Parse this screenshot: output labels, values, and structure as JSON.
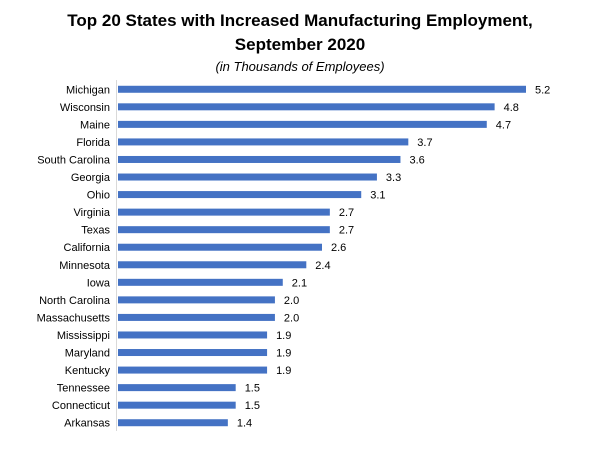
{
  "chart_data": {
    "type": "bar",
    "orientation": "horizontal",
    "title": "Top 20 States with Increased Manufacturing Employment, September 2020",
    "title_lines": [
      "Top 20 States with Increased Manufacturing Employment,",
      "September 2020"
    ],
    "subtitle": "(in Thousands of Employees)",
    "xlabel": "",
    "ylabel": "",
    "categories": [
      "Michigan",
      "Wisconsin",
      "Maine",
      "Florida",
      "South Carolina",
      "Georgia",
      "Ohio",
      "Virginia",
      "Texas",
      "California",
      "Minnesota",
      "Iowa",
      "North Carolina",
      "Massachusetts",
      "Mississippi",
      "Maryland",
      "Kentucky",
      "Tennessee",
      "Connecticut",
      "Arkansas"
    ],
    "values": [
      5.2,
      4.8,
      4.7,
      3.7,
      3.6,
      3.3,
      3.1,
      2.7,
      2.7,
      2.6,
      2.4,
      2.1,
      2.0,
      2.0,
      1.9,
      1.9,
      1.9,
      1.5,
      1.5,
      1.4
    ],
    "value_labels": [
      "5.2",
      "4.8",
      "4.7",
      "3.7",
      "3.6",
      "3.3",
      "3.1",
      "2.7",
      "2.7",
      "2.6",
      "2.4",
      "2.1",
      "2.0",
      "2.0",
      "1.9",
      "1.9",
      "1.9",
      "1.5",
      "1.5",
      "1.4"
    ],
    "xlim": [
      0,
      5.2
    ],
    "grid": false,
    "legend": "none",
    "bar_color": "#4472C4"
  }
}
